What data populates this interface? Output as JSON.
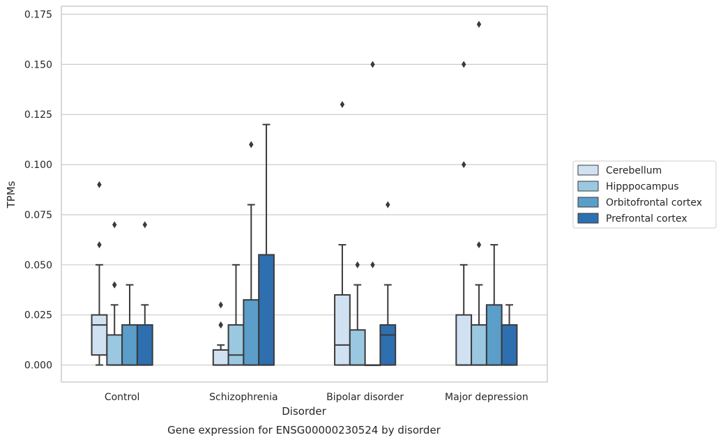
{
  "chart_data": {
    "type": "box",
    "title": "Gene expression for ENSG00000230524 by disorder",
    "xlabel": "Disorder",
    "ylabel": "TPMs",
    "ylim": [
      -0.0085,
      0.179
    ],
    "yticks": [
      "0.000",
      "0.025",
      "0.050",
      "0.075",
      "0.100",
      "0.125",
      "0.150",
      "0.175"
    ],
    "categories": [
      "Control",
      "Schizophrenia",
      "Bipolar disorder",
      "Major depression"
    ],
    "grid": true,
    "legend_position": "right",
    "series": [
      {
        "name": "Cerebellum",
        "color": "#d0e1f2",
        "boxes": [
          {
            "q1": 0.005,
            "median": 0.02,
            "q3": 0.025,
            "whisker_low": 0.0,
            "whisker_high": 0.05,
            "outliers": [
              0.06,
              0.09
            ]
          },
          {
            "q1": 0.0,
            "median": 0.0,
            "q3": 0.0075,
            "whisker_low": 0.0,
            "whisker_high": 0.01,
            "outliers": [
              0.02,
              0.02,
              0.03
            ]
          },
          {
            "q1": 0.0,
            "median": 0.01,
            "q3": 0.035,
            "whisker_low": 0.0,
            "whisker_high": 0.06,
            "outliers": [
              0.13
            ]
          },
          {
            "q1": 0.0,
            "median": 0.0,
            "q3": 0.025,
            "whisker_low": 0.0,
            "whisker_high": 0.05,
            "outliers": [
              0.1,
              0.15
            ]
          }
        ]
      },
      {
        "name": "Hipppocampus",
        "color": "#9ac8e0",
        "boxes": [
          {
            "q1": 0.0,
            "median": 0.0,
            "q3": 0.015,
            "whisker_low": 0.0,
            "whisker_high": 0.03,
            "outliers": [
              0.04,
              0.04,
              0.07
            ]
          },
          {
            "q1": 0.0,
            "median": 0.005,
            "q3": 0.02,
            "whisker_low": 0.0,
            "whisker_high": 0.05,
            "outliers": []
          },
          {
            "q1": 0.0,
            "median": 0.0,
            "q3": 0.0175,
            "whisker_low": 0.0,
            "whisker_high": 0.04,
            "outliers": [
              0.05
            ]
          },
          {
            "q1": 0.0,
            "median": 0.0,
            "q3": 0.02,
            "whisker_low": 0.0,
            "whisker_high": 0.04,
            "outliers": [
              0.06,
              0.17
            ]
          }
        ]
      },
      {
        "name": "Orbitofrontal cortex",
        "color": "#5a9ec9",
        "boxes": [
          {
            "q1": 0.0,
            "median": 0.0,
            "q3": 0.02,
            "whisker_low": 0.0,
            "whisker_high": 0.04,
            "outliers": []
          },
          {
            "q1": 0.0,
            "median": 0.0,
            "q3": 0.0325,
            "whisker_low": 0.0,
            "whisker_high": 0.08,
            "outliers": [
              0.11
            ]
          },
          {
            "q1": 0.0,
            "median": 0.0,
            "q3": 0.0,
            "whisker_low": 0.0,
            "whisker_high": 0.0,
            "outliers": [
              0.05,
              0.15
            ]
          },
          {
            "q1": 0.0,
            "median": 0.0,
            "q3": 0.03,
            "whisker_low": 0.0,
            "whisker_high": 0.06,
            "outliers": []
          }
        ]
      },
      {
        "name": "Prefrontal cortex",
        "color": "#2e6fb0",
        "boxes": [
          {
            "q1": 0.0,
            "median": 0.0,
            "q3": 0.02,
            "whisker_low": 0.0,
            "whisker_high": 0.03,
            "outliers": [
              0.07
            ]
          },
          {
            "q1": 0.0,
            "median": 0.0,
            "q3": 0.055,
            "whisker_low": 0.0,
            "whisker_high": 0.12,
            "outliers": []
          },
          {
            "q1": 0.0,
            "median": 0.015,
            "q3": 0.02,
            "whisker_low": 0.0,
            "whisker_high": 0.04,
            "outliers": [
              0.08
            ]
          },
          {
            "q1": 0.0,
            "median": 0.0,
            "q3": 0.02,
            "whisker_low": 0.0,
            "whisker_high": 0.03,
            "outliers": []
          }
        ]
      }
    ]
  }
}
